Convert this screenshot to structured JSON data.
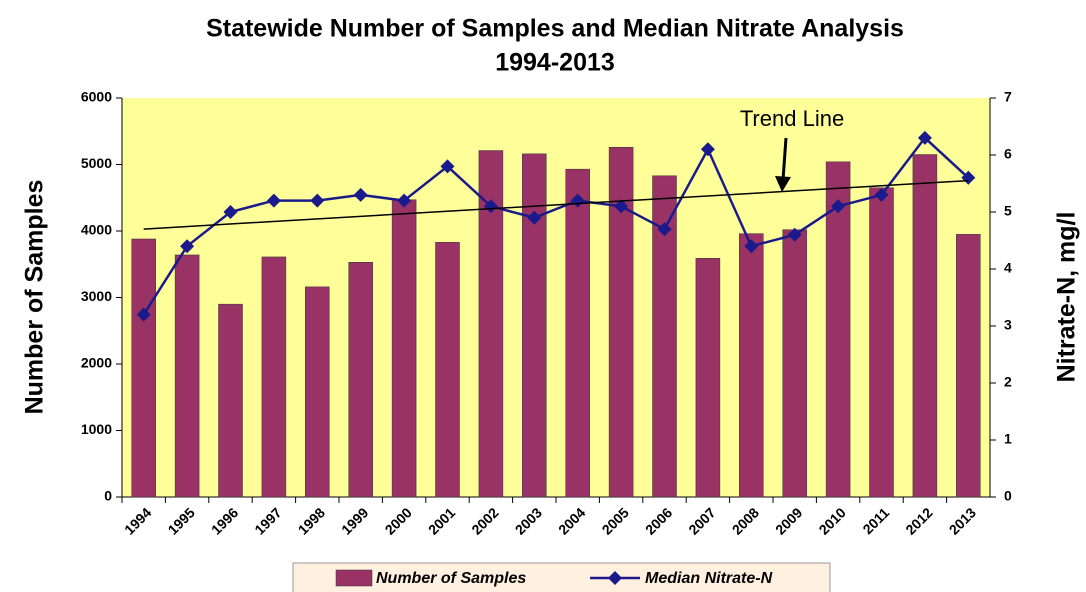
{
  "chart_data": {
    "type": "bar_line",
    "title": "Statewide Number of Samples and Median Nitrate Analysis",
    "subtitle": "1994-2013",
    "y_label": "Number of Samples",
    "y2_label": "Nitrate-N, mg/l",
    "categories": [
      "1994",
      "1995",
      "1996",
      "1997",
      "1998",
      "1999",
      "2000",
      "2001",
      "2002",
      "2003",
      "2004",
      "2005",
      "2006",
      "2007",
      "2008",
      "2009",
      "2010",
      "2011",
      "2012",
      "2013"
    ],
    "series": [
      {
        "name": "Number of Samples",
        "type": "bar",
        "color": "#993366",
        "values": [
          3880,
          3640,
          2900,
          3610,
          3160,
          3530,
          4470,
          3830,
          5210,
          5160,
          4930,
          5260,
          4830,
          3590,
          3960,
          4020,
          5040,
          4650,
          5150,
          3950
        ]
      },
      {
        "name": "Median Nitrate-N",
        "type": "line",
        "axis": "y2",
        "color": "#1a1a8c",
        "values": [
          3.2,
          4.4,
          5.0,
          5.2,
          5.2,
          5.3,
          5.2,
          5.8,
          5.1,
          4.9,
          5.2,
          5.1,
          4.7,
          6.1,
          4.4,
          4.6,
          5.1,
          5.3,
          6.3,
          5.6
        ]
      }
    ],
    "trend": {
      "name": "Trend Line",
      "axis": "y2",
      "color": "#000000",
      "values": [
        4.7,
        5.55
      ]
    },
    "ylim": [
      0,
      6000
    ],
    "yticks": [
      0,
      1000,
      2000,
      3000,
      4000,
      5000,
      6000
    ],
    "y2lim": [
      0,
      7
    ],
    "y2ticks": [
      0,
      1,
      2,
      3,
      4,
      5,
      6,
      7
    ],
    "background": "#ffff99",
    "legend": "bottom"
  }
}
